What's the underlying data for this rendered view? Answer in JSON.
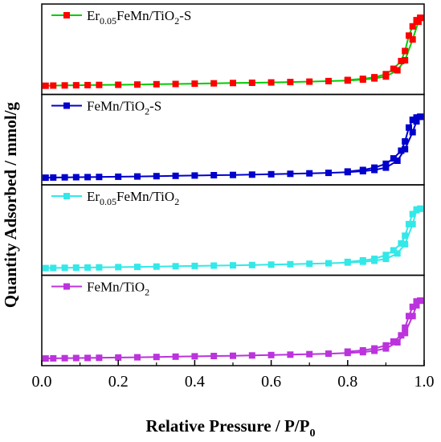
{
  "chart_data": {
    "type": "line",
    "layout": "stacked-panels",
    "xlabel": "Relative Pressure / P/P",
    "xlabel_subscript": "0",
    "ylabel": "Quantity Adsorbed / mmol/g",
    "xlim": [
      0.0,
      1.0
    ],
    "xticks": [
      "0.0",
      "0.2",
      "0.4",
      "0.6",
      "0.8",
      "1.0"
    ],
    "ylim": [
      0,
      1
    ],
    "y_units_note": "arbitrary offset units; no y tick labels printed",
    "grid": false,
    "legend_placement": "top-left of each panel",
    "marker": "square",
    "panels": [
      {
        "legend_parts": [
          [
            "Er",
            ""
          ],
          [
            "0.05",
            "sub"
          ],
          [
            "FeMn/TiO",
            ""
          ],
          [
            "2",
            "sub"
          ],
          [
            "-S",
            ""
          ]
        ],
        "color": "#ff0000",
        "line_color": "#00cc00",
        "adsorption": [
          [
            0.01,
            0.05
          ],
          [
            0.03,
            0.052
          ],
          [
            0.06,
            0.054
          ],
          [
            0.09,
            0.056
          ],
          [
            0.12,
            0.058
          ],
          [
            0.15,
            0.06
          ],
          [
            0.2,
            0.063
          ],
          [
            0.25,
            0.066
          ],
          [
            0.3,
            0.07
          ],
          [
            0.35,
            0.073
          ],
          [
            0.4,
            0.077
          ],
          [
            0.45,
            0.081
          ],
          [
            0.5,
            0.085
          ],
          [
            0.55,
            0.089
          ],
          [
            0.6,
            0.093
          ],
          [
            0.65,
            0.098
          ],
          [
            0.7,
            0.103
          ],
          [
            0.75,
            0.11
          ],
          [
            0.8,
            0.118
          ],
          [
            0.84,
            0.13
          ],
          [
            0.87,
            0.145
          ],
          [
            0.9,
            0.17
          ],
          [
            0.93,
            0.25
          ],
          [
            0.95,
            0.38
          ],
          [
            0.97,
            0.65
          ],
          [
            0.985,
            0.88
          ],
          [
            0.99,
            0.93
          ]
        ],
        "desorption": [
          [
            0.99,
            0.93
          ],
          [
            0.98,
            0.9
          ],
          [
            0.97,
            0.82
          ],
          [
            0.96,
            0.7
          ],
          [
            0.95,
            0.5
          ],
          [
            0.94,
            0.37
          ],
          [
            0.92,
            0.27
          ],
          [
            0.9,
            0.2
          ],
          [
            0.87,
            0.16
          ],
          [
            0.84,
            0.14
          ],
          [
            0.8,
            0.125
          ]
        ]
      },
      {
        "legend_parts": [
          [
            "FeMn/TiO",
            ""
          ],
          [
            "2",
            "sub"
          ],
          [
            "-S",
            ""
          ]
        ],
        "color": "#0000cc",
        "line_color": "#0000cc",
        "adsorption": [
          [
            0.01,
            0.03
          ],
          [
            0.03,
            0.032
          ],
          [
            0.06,
            0.034
          ],
          [
            0.09,
            0.036
          ],
          [
            0.12,
            0.038
          ],
          [
            0.15,
            0.04
          ],
          [
            0.2,
            0.043
          ],
          [
            0.25,
            0.046
          ],
          [
            0.3,
            0.05
          ],
          [
            0.35,
            0.054
          ],
          [
            0.4,
            0.058
          ],
          [
            0.45,
            0.062
          ],
          [
            0.5,
            0.066
          ],
          [
            0.55,
            0.07
          ],
          [
            0.6,
            0.075
          ],
          [
            0.65,
            0.08
          ],
          [
            0.7,
            0.086
          ],
          [
            0.75,
            0.093
          ],
          [
            0.8,
            0.102
          ],
          [
            0.84,
            0.115
          ],
          [
            0.87,
            0.13
          ],
          [
            0.9,
            0.16
          ],
          [
            0.93,
            0.25
          ],
          [
            0.95,
            0.4
          ],
          [
            0.97,
            0.62
          ],
          [
            0.98,
            0.76
          ],
          [
            0.99,
            0.82
          ]
        ],
        "desorption": [
          [
            0.99,
            0.82
          ],
          [
            0.98,
            0.81
          ],
          [
            0.97,
            0.78
          ],
          [
            0.96,
            0.68
          ],
          [
            0.95,
            0.5
          ],
          [
            0.94,
            0.38
          ],
          [
            0.92,
            0.28
          ],
          [
            0.9,
            0.21
          ],
          [
            0.87,
            0.16
          ],
          [
            0.84,
            0.13
          ],
          [
            0.8,
            0.11
          ]
        ]
      },
      {
        "legend_parts": [
          [
            "Er",
            ""
          ],
          [
            "0.05",
            "sub"
          ],
          [
            "FeMn/TiO",
            ""
          ],
          [
            "2",
            "sub"
          ]
        ],
        "color": "#33e8e8",
        "line_color": "#33e8e8",
        "adsorption": [
          [
            0.01,
            0.03
          ],
          [
            0.03,
            0.032
          ],
          [
            0.06,
            0.034
          ],
          [
            0.09,
            0.036
          ],
          [
            0.12,
            0.038
          ],
          [
            0.15,
            0.04
          ],
          [
            0.2,
            0.043
          ],
          [
            0.25,
            0.046
          ],
          [
            0.3,
            0.05
          ],
          [
            0.35,
            0.054
          ],
          [
            0.4,
            0.058
          ],
          [
            0.45,
            0.062
          ],
          [
            0.5,
            0.066
          ],
          [
            0.55,
            0.07
          ],
          [
            0.6,
            0.075
          ],
          [
            0.65,
            0.08
          ],
          [
            0.7,
            0.086
          ],
          [
            0.75,
            0.093
          ],
          [
            0.8,
            0.102
          ],
          [
            0.84,
            0.112
          ],
          [
            0.87,
            0.125
          ],
          [
            0.9,
            0.15
          ],
          [
            0.93,
            0.22
          ],
          [
            0.95,
            0.34
          ],
          [
            0.97,
            0.6
          ],
          [
            0.98,
            0.78
          ],
          [
            0.99,
            0.8
          ]
        ],
        "desorption": [
          [
            0.99,
            0.8
          ],
          [
            0.98,
            0.79
          ],
          [
            0.97,
            0.73
          ],
          [
            0.96,
            0.6
          ],
          [
            0.95,
            0.45
          ],
          [
            0.94,
            0.35
          ],
          [
            0.92,
            0.26
          ],
          [
            0.9,
            0.2
          ],
          [
            0.87,
            0.15
          ],
          [
            0.84,
            0.13
          ],
          [
            0.8,
            0.11
          ]
        ]
      },
      {
        "legend_parts": [
          [
            "FeMn/TiO",
            ""
          ],
          [
            "2",
            "sub"
          ]
        ],
        "color": "#bb33dd",
        "line_color": "#bb33dd",
        "adsorption": [
          [
            0.01,
            0.03
          ],
          [
            0.03,
            0.032
          ],
          [
            0.06,
            0.034
          ],
          [
            0.09,
            0.036
          ],
          [
            0.12,
            0.038
          ],
          [
            0.15,
            0.04
          ],
          [
            0.2,
            0.043
          ],
          [
            0.25,
            0.046
          ],
          [
            0.3,
            0.05
          ],
          [
            0.35,
            0.054
          ],
          [
            0.4,
            0.058
          ],
          [
            0.45,
            0.062
          ],
          [
            0.5,
            0.066
          ],
          [
            0.55,
            0.07
          ],
          [
            0.6,
            0.075
          ],
          [
            0.65,
            0.08
          ],
          [
            0.7,
            0.086
          ],
          [
            0.75,
            0.093
          ],
          [
            0.8,
            0.102
          ],
          [
            0.84,
            0.113
          ],
          [
            0.87,
            0.13
          ],
          [
            0.9,
            0.16
          ],
          [
            0.93,
            0.24
          ],
          [
            0.95,
            0.36
          ],
          [
            0.97,
            0.58
          ],
          [
            0.98,
            0.72
          ],
          [
            0.99,
            0.78
          ]
        ],
        "desorption": [
          [
            0.99,
            0.78
          ],
          [
            0.98,
            0.77
          ],
          [
            0.97,
            0.7
          ],
          [
            0.96,
            0.58
          ],
          [
            0.95,
            0.43
          ],
          [
            0.94,
            0.33
          ],
          [
            0.92,
            0.25
          ],
          [
            0.9,
            0.2
          ],
          [
            0.87,
            0.16
          ],
          [
            0.84,
            0.135
          ],
          [
            0.8,
            0.12
          ]
        ]
      }
    ]
  }
}
